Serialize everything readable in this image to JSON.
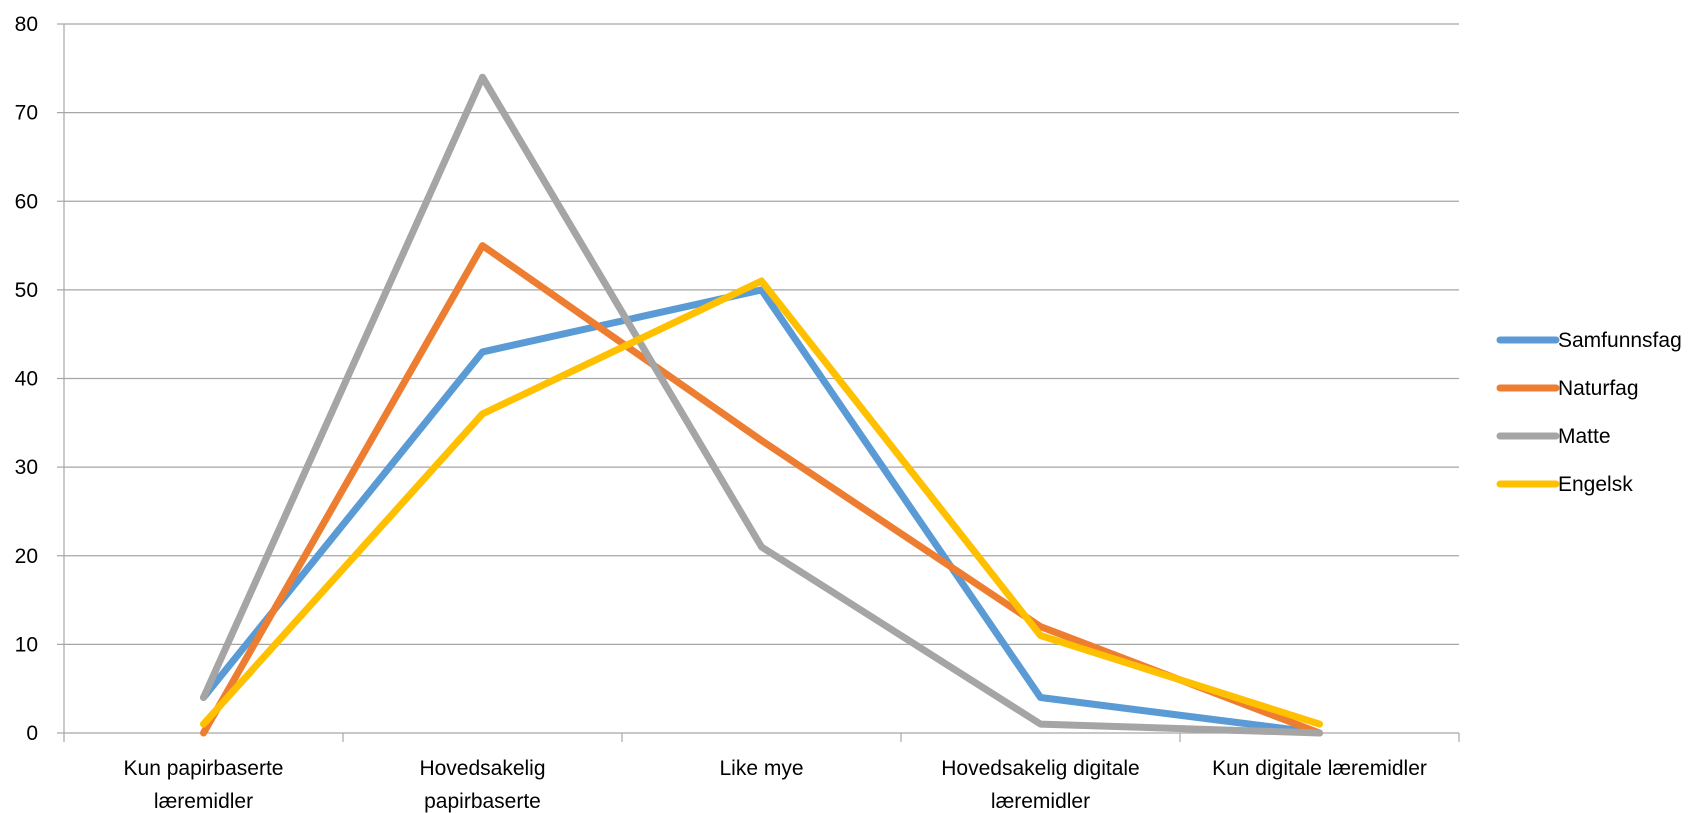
{
  "chart_data": {
    "type": "line",
    "title": "",
    "xlabel": "",
    "ylabel": "",
    "ylim": [
      0,
      80
    ],
    "yticks": [
      0,
      10,
      20,
      30,
      40,
      50,
      60,
      70,
      80
    ],
    "grid": true,
    "legend_position": "right",
    "categories": [
      [
        "Kun papirbaserte",
        "læremidler"
      ],
      [
        "Hovedsakelig",
        "papirbaserte"
      ],
      [
        "Like mye"
      ],
      [
        "Hovedsakelig digitale",
        "læremidler"
      ],
      [
        "Kun digitale læremidler"
      ]
    ],
    "series": [
      {
        "name": "Samfunnsfag",
        "color": "#5B9BD5",
        "values": [
          4,
          43,
          50,
          4,
          0
        ]
      },
      {
        "name": "Naturfag",
        "color": "#ED7D31",
        "values": [
          0,
          55,
          33,
          12,
          0
        ]
      },
      {
        "name": "Matte",
        "color": "#A5A5A5",
        "values": [
          4,
          74,
          21,
          1,
          0
        ]
      },
      {
        "name": "Engelsk",
        "color": "#FFC000",
        "values": [
          1,
          36,
          51,
          11,
          1
        ]
      }
    ]
  }
}
